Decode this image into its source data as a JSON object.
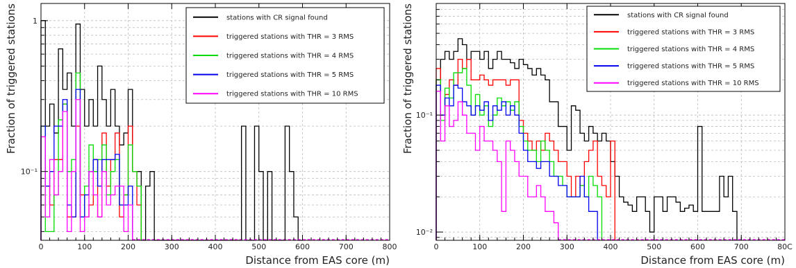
{
  "chart_data": [
    {
      "type": "step",
      "xlabel": "Distance from EAS core (m)",
      "ylabel": "Fraction of triggered stations",
      "xlim": [
        0,
        800
      ],
      "ylim": [
        0.035,
        1.3
      ],
      "yscale": "log",
      "bin_width": 10,
      "xticks": [
        "0",
        "100",
        "200",
        "300",
        "400",
        "500",
        "600",
        "700",
        "800"
      ],
      "yticks": [
        {
          "value": 1,
          "label": "1"
        },
        {
          "value": 0.1,
          "label": "10⁻¹"
        }
      ],
      "grid": true,
      "legend_position": "top-right",
      "series": [
        {
          "name": "stations with CR signal found",
          "color": "#000000",
          "values": [
            1.0,
            0.2,
            0.28,
            0.18,
            0.65,
            0.35,
            0.45,
            0.2,
            0.95,
            0.35,
            0.2,
            0.3,
            0.2,
            0.5,
            0.3,
            0.2,
            0.35,
            0.2,
            0.15,
            0.18,
            0.35,
            0.1,
            0.1,
            0,
            0.08,
            0.1,
            0,
            0,
            0,
            0,
            0,
            0,
            0,
            0,
            0,
            0,
            0,
            0,
            0,
            0,
            0,
            0,
            0,
            0,
            0,
            0,
            0.2,
            0,
            0,
            0.2,
            0.1,
            0,
            0.1,
            0,
            0,
            0,
            0.2,
            0.1,
            0.05,
            0
          ]
        },
        {
          "name": "triggered stations with THR = 3 RMS",
          "color": "#ff0000",
          "values": [
            0.17,
            0.08,
            0.06,
            0.12,
            0.12,
            0.28,
            0.05,
            0.05,
            0.2,
            0.07,
            0.05,
            0.06,
            0.12,
            0.05,
            0.18,
            0.08,
            0.12,
            0.18,
            0.05,
            0.07,
            0.2,
            0.1,
            0.06
          ]
        },
        {
          "name": "triggered stations with THR = 4 RMS",
          "color": "#00dd00",
          "values": [
            0.2,
            0.04,
            0.04,
            0.07,
            0.22,
            0.28,
            0.1,
            0.12,
            0.45,
            0.05,
            0.08,
            0.15,
            0.1,
            0.12,
            0.15,
            0.07,
            0.1,
            0.12,
            0.06,
            0.07,
            0.15,
            0.1,
            0.08
          ]
        },
        {
          "name": "triggered stations with THR = 5 RMS",
          "color": "#0000ee",
          "values": [
            0.2,
            0.08,
            0.1,
            0.2,
            0.2,
            0.3,
            0.06,
            0.05,
            0.35,
            0.05,
            0.07,
            0.1,
            0.12,
            0.08,
            0.12,
            0.12,
            0.12,
            0.13,
            0.06,
            0.06,
            0.08
          ]
        },
        {
          "name": "triggered stations with THR = 10 RMS",
          "color": "#ff00ff",
          "values": [
            0.17,
            0.05,
            0.12,
            0.07,
            0.1,
            0.25,
            0.04,
            0.1,
            0.3,
            0.04,
            0.05,
            0.1,
            0.07,
            0.05,
            0.1,
            0.06,
            0.07,
            0.08,
            0.08,
            0.04,
            0.06
          ]
        }
      ]
    },
    {
      "type": "step",
      "xlabel": "Distance from EAS core (m)",
      "ylabel": "Fraction of triggered stations",
      "xlim": [
        0,
        800
      ],
      "ylim": [
        0.0085,
        0.9
      ],
      "yscale": "log",
      "bin_width": 10,
      "xticks": [
        "0",
        "100",
        "200",
        "300",
        "400",
        "500",
        "600",
        "700",
        "80C"
      ],
      "yticks": [
        {
          "value": 0.1,
          "label": "10⁻¹"
        },
        {
          "value": 0.01,
          "label": "10⁻²"
        }
      ],
      "grid": true,
      "legend_position": "top-right",
      "series": [
        {
          "name": "stations with CR signal found",
          "color": "#000000",
          "values": [
            0.2,
            0.3,
            0.35,
            0.3,
            0.35,
            0.45,
            0.4,
            0.3,
            0.35,
            0.35,
            0.3,
            0.35,
            0.25,
            0.3,
            0.35,
            0.3,
            0.3,
            0.28,
            0.25,
            0.3,
            0.27,
            0.25,
            0.22,
            0.25,
            0.22,
            0.2,
            0.13,
            0.13,
            0.08,
            0.08,
            0.05,
            0.12,
            0.11,
            0.07,
            0.06,
            0.08,
            0.07,
            0.06,
            0.07,
            0.06,
            0.04,
            0.03,
            0.02,
            0.018,
            0.017,
            0.015,
            0.02,
            0.02,
            0.015,
            0.01,
            0.02,
            0.02,
            0.015,
            0.02,
            0.02,
            0.018,
            0.015,
            0.016,
            0.017,
            0.015,
            0.08,
            0.015,
            0.015,
            0.015,
            0.015,
            0.03,
            0.02,
            0.03,
            0.015
          ]
        },
        {
          "name": "triggered stations with THR = 3 RMS",
          "color": "#ff0000",
          "values": [
            0.25,
            0.1,
            0.15,
            0.2,
            0.18,
            0.3,
            0.25,
            0.3,
            0.2,
            0.2,
            0.22,
            0.2,
            0.18,
            0.2,
            0.2,
            0.2,
            0.18,
            0.2,
            0.2,
            0.09,
            0.07,
            0.06,
            0.05,
            0.06,
            0.05,
            0.07,
            0.06,
            0.05,
            0.04,
            0.04,
            0.03,
            0.02,
            0.03,
            0.025,
            0.04,
            0.05,
            0.06,
            0.03,
            0.025,
            0.02,
            0.06
          ]
        },
        {
          "name": "triggered stations with THR = 4 RMS",
          "color": "#00dd00",
          "values": [
            0.2,
            0.09,
            0.17,
            0.14,
            0.23,
            0.23,
            0.25,
            0.18,
            0.1,
            0.15,
            0.1,
            0.12,
            0.08,
            0.1,
            0.14,
            0.12,
            0.13,
            0.11,
            0.13,
            0.08,
            0.06,
            0.05,
            0.05,
            0.04,
            0.06,
            0.05,
            0.04,
            0.03,
            0.03,
            0.025,
            0.02,
            0.02,
            0.02,
            0.025,
            0.02,
            0.03,
            0.025,
            0.02
          ]
        },
        {
          "name": "triggered stations with THR = 5 RMS",
          "color": "#0000ee",
          "values": [
            0.18,
            0.1,
            0.14,
            0.12,
            0.18,
            0.17,
            0.13,
            0.12,
            0.1,
            0.12,
            0.11,
            0.13,
            0.09,
            0.12,
            0.11,
            0.13,
            0.1,
            0.12,
            0.1,
            0.07,
            0.05,
            0.04,
            0.04,
            0.035,
            0.04,
            0.04,
            0.03,
            0.03,
            0.025,
            0.025,
            0.02,
            0.02,
            0.02,
            0.03,
            0.02,
            0.015,
            0.015
          ]
        },
        {
          "name": "triggered stations with THR = 10 RMS",
          "color": "#ff00ff",
          "values": [
            0.16,
            0.06,
            0.12,
            0.08,
            0.09,
            0.13,
            0.1,
            0.07,
            0.07,
            0.05,
            0.08,
            0.06,
            0.06,
            0.05,
            0.04,
            0.015,
            0.06,
            0.05,
            0.04,
            0.03,
            0.03,
            0.02,
            0.02,
            0.025,
            0.02,
            0.015,
            0.015,
            0.012
          ]
        }
      ]
    }
  ]
}
